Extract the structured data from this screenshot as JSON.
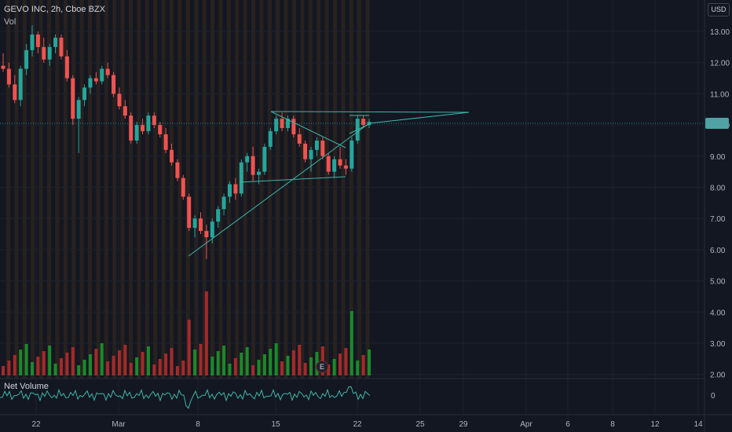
{
  "header": {
    "symbol_line": "GEVO INC, 2h, Cboe BZX",
    "volume_label": "Vol"
  },
  "currency_badge": "USD",
  "net_volume_label": "Net Volume",
  "earnings_badge": "E",
  "price_axis": {
    "ticks": [
      "13.00",
      "12.00",
      "11.00",
      "10.00",
      "9.00",
      "8.00",
      "7.00",
      "6.00",
      "5.00",
      "4.00",
      "3.00",
      "2.00"
    ],
    "values": [
      13,
      12,
      11,
      10,
      9,
      8,
      7,
      6,
      5,
      4,
      3,
      2
    ]
  },
  "net_volume_axis": {
    "ticks": [
      "0"
    ]
  },
  "time_axis": {
    "ticks": [
      "22",
      "Mar",
      "8",
      "15",
      "22",
      "25",
      "29",
      "Apr",
      "6",
      "8",
      "12",
      "14"
    ]
  },
  "colors": {
    "background": "#131722",
    "up": "#26a69a",
    "down": "#ef5350",
    "vol_up": "#1b8a2a",
    "vol_down": "#a52a2a",
    "drawing": "#3fb5a8",
    "price_line": "#26a69a",
    "session_stripe": "#3a2a1c"
  },
  "chart_data": {
    "type": "candlestick",
    "series": [
      {
        "name": "GEVO INC",
        "ohlc_approx": [
          [
            11.9,
            12.3,
            11.7,
            11.8
          ],
          [
            11.8,
            12.0,
            11.2,
            11.3
          ],
          [
            11.3,
            11.6,
            10.7,
            10.8
          ],
          [
            10.8,
            11.9,
            10.6,
            11.8
          ],
          [
            11.8,
            12.6,
            11.6,
            12.4
          ],
          [
            12.4,
            13.2,
            12.2,
            12.9
          ],
          [
            12.9,
            13.0,
            12.3,
            12.5
          ],
          [
            12.5,
            12.8,
            12.0,
            12.1
          ],
          [
            12.1,
            12.6,
            11.9,
            12.5
          ],
          [
            12.5,
            12.9,
            12.3,
            12.8
          ],
          [
            12.8,
            12.9,
            12.1,
            12.2
          ],
          [
            12.2,
            12.4,
            11.4,
            11.5
          ],
          [
            11.5,
            11.6,
            10.0,
            10.2
          ],
          [
            10.2,
            10.9,
            9.1,
            10.8
          ],
          [
            10.8,
            11.3,
            10.6,
            11.2
          ],
          [
            11.2,
            11.6,
            11.0,
            11.5
          ],
          [
            11.5,
            11.7,
            11.3,
            11.4
          ],
          [
            11.4,
            11.9,
            11.3,
            11.8
          ],
          [
            11.8,
            12.0,
            11.5,
            11.6
          ],
          [
            11.6,
            11.7,
            10.9,
            11.0
          ],
          [
            11.0,
            11.2,
            10.5,
            10.6
          ],
          [
            10.6,
            10.8,
            10.2,
            10.3
          ],
          [
            10.3,
            10.4,
            9.4,
            9.5
          ],
          [
            9.5,
            10.1,
            9.4,
            10.0
          ],
          [
            10.0,
            10.2,
            9.7,
            9.8
          ],
          [
            9.8,
            10.4,
            9.7,
            10.3
          ],
          [
            10.3,
            10.4,
            9.9,
            10.0
          ],
          [
            10.0,
            10.1,
            9.6,
            9.7
          ],
          [
            9.7,
            9.9,
            9.1,
            9.2
          ],
          [
            9.2,
            9.4,
            8.7,
            8.8
          ],
          [
            8.8,
            8.9,
            8.2,
            8.3
          ],
          [
            8.3,
            8.4,
            7.6,
            7.7
          ],
          [
            7.7,
            7.8,
            6.6,
            6.7
          ],
          [
            6.7,
            7.1,
            6.4,
            7.0
          ],
          [
            7.0,
            7.2,
            6.5,
            6.6
          ],
          [
            6.6,
            6.8,
            5.7,
            6.4
          ],
          [
            6.4,
            7.0,
            6.2,
            6.9
          ],
          [
            6.9,
            7.4,
            6.7,
            7.3
          ],
          [
            7.3,
            7.8,
            7.1,
            7.7
          ],
          [
            7.7,
            8.2,
            7.5,
            8.1
          ],
          [
            8.1,
            8.3,
            7.6,
            7.8
          ],
          [
            7.8,
            8.9,
            7.7,
            8.8
          ],
          [
            8.8,
            9.1,
            8.5,
            9.0
          ],
          [
            9.0,
            9.3,
            8.2,
            8.4
          ],
          [
            8.4,
            8.6,
            8.1,
            8.5
          ],
          [
            8.5,
            9.4,
            8.4,
            9.3
          ],
          [
            9.3,
            9.9,
            9.2,
            9.8
          ],
          [
            9.8,
            10.3,
            9.7,
            10.2
          ],
          [
            10.2,
            10.4,
            9.8,
            9.9
          ],
          [
            9.9,
            10.3,
            9.8,
            10.2
          ],
          [
            10.2,
            10.3,
            9.6,
            9.7
          ],
          [
            9.7,
            9.9,
            9.3,
            9.4
          ],
          [
            9.4,
            9.5,
            8.8,
            8.9
          ],
          [
            8.9,
            9.3,
            8.5,
            9.2
          ],
          [
            9.2,
            9.6,
            9.0,
            9.5
          ],
          [
            9.5,
            9.6,
            8.9,
            9.0
          ],
          [
            9.0,
            9.1,
            8.4,
            8.5
          ],
          [
            8.5,
            9.0,
            8.3,
            8.9
          ],
          [
            8.9,
            9.3,
            8.6,
            8.7
          ],
          [
            8.7,
            8.9,
            8.4,
            8.6
          ],
          [
            8.6,
            9.6,
            8.5,
            9.5
          ],
          [
            9.5,
            10.3,
            9.4,
            10.2
          ],
          [
            10.2,
            10.3,
            9.9,
            10.0
          ],
          [
            10.0,
            10.2,
            9.9,
            10.1
          ]
        ]
      },
      {
        "name": "Vol"
      },
      {
        "name": "Net Volume"
      }
    ],
    "y_range": [
      1.8,
      13.6
    ],
    "drawings": [
      "ascending triangle lines",
      "descending wedge lines"
    ],
    "grid": true
  }
}
